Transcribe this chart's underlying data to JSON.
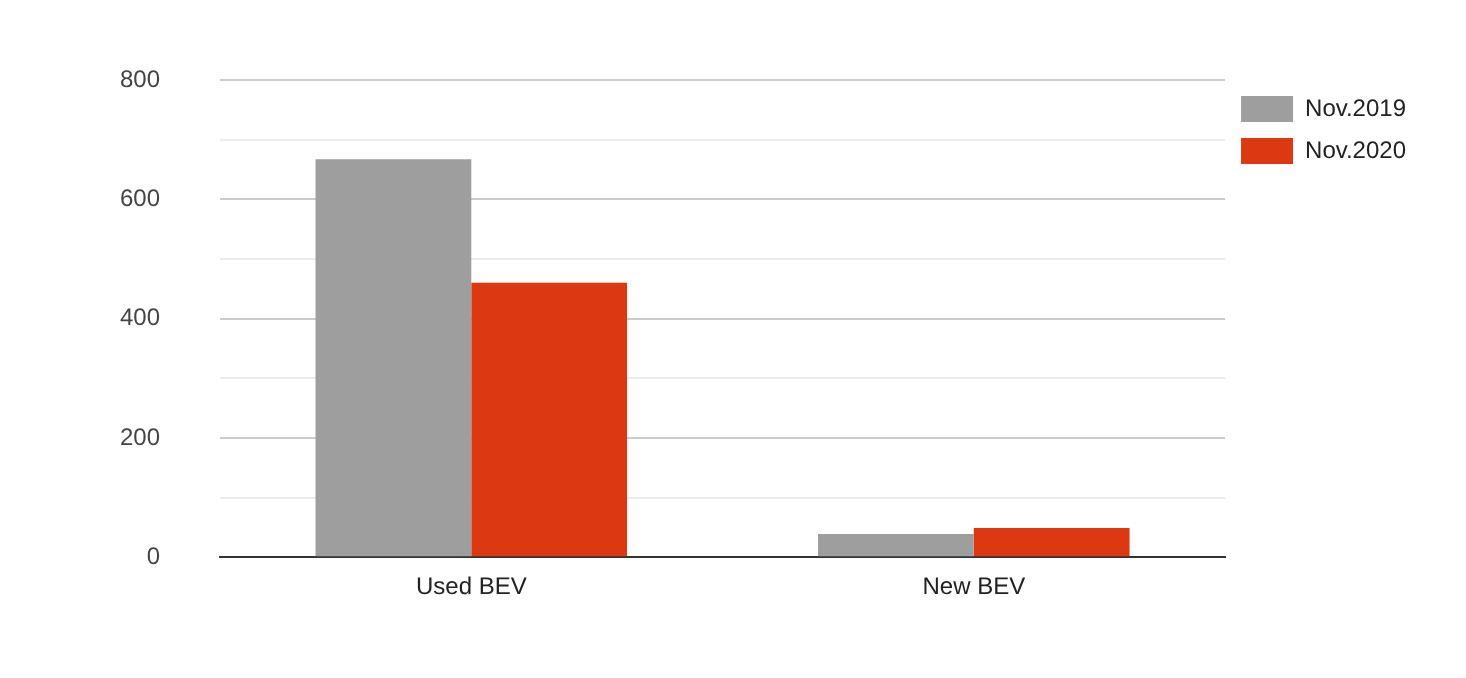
{
  "chart_data": {
    "type": "bar",
    "categories": [
      "Used BEV",
      "New BEV"
    ],
    "series": [
      {
        "name": "Nov.2019",
        "color": "#9e9e9e",
        "values": [
          667,
          39
        ]
      },
      {
        "name": "Nov.2020",
        "color": "#dc3912",
        "values": [
          460,
          49
        ]
      }
    ],
    "ylim": [
      0,
      800
    ],
    "yticks": [
      0,
      {
        "value": 100,
        "label": null
      },
      200,
      {
        "value": 300,
        "label": null
      },
      400,
      {
        "value": 500,
        "label": null
      },
      600,
      {
        "value": 700,
        "label": null
      },
      800
    ],
    "grid": "y",
    "legend": "top right"
  }
}
